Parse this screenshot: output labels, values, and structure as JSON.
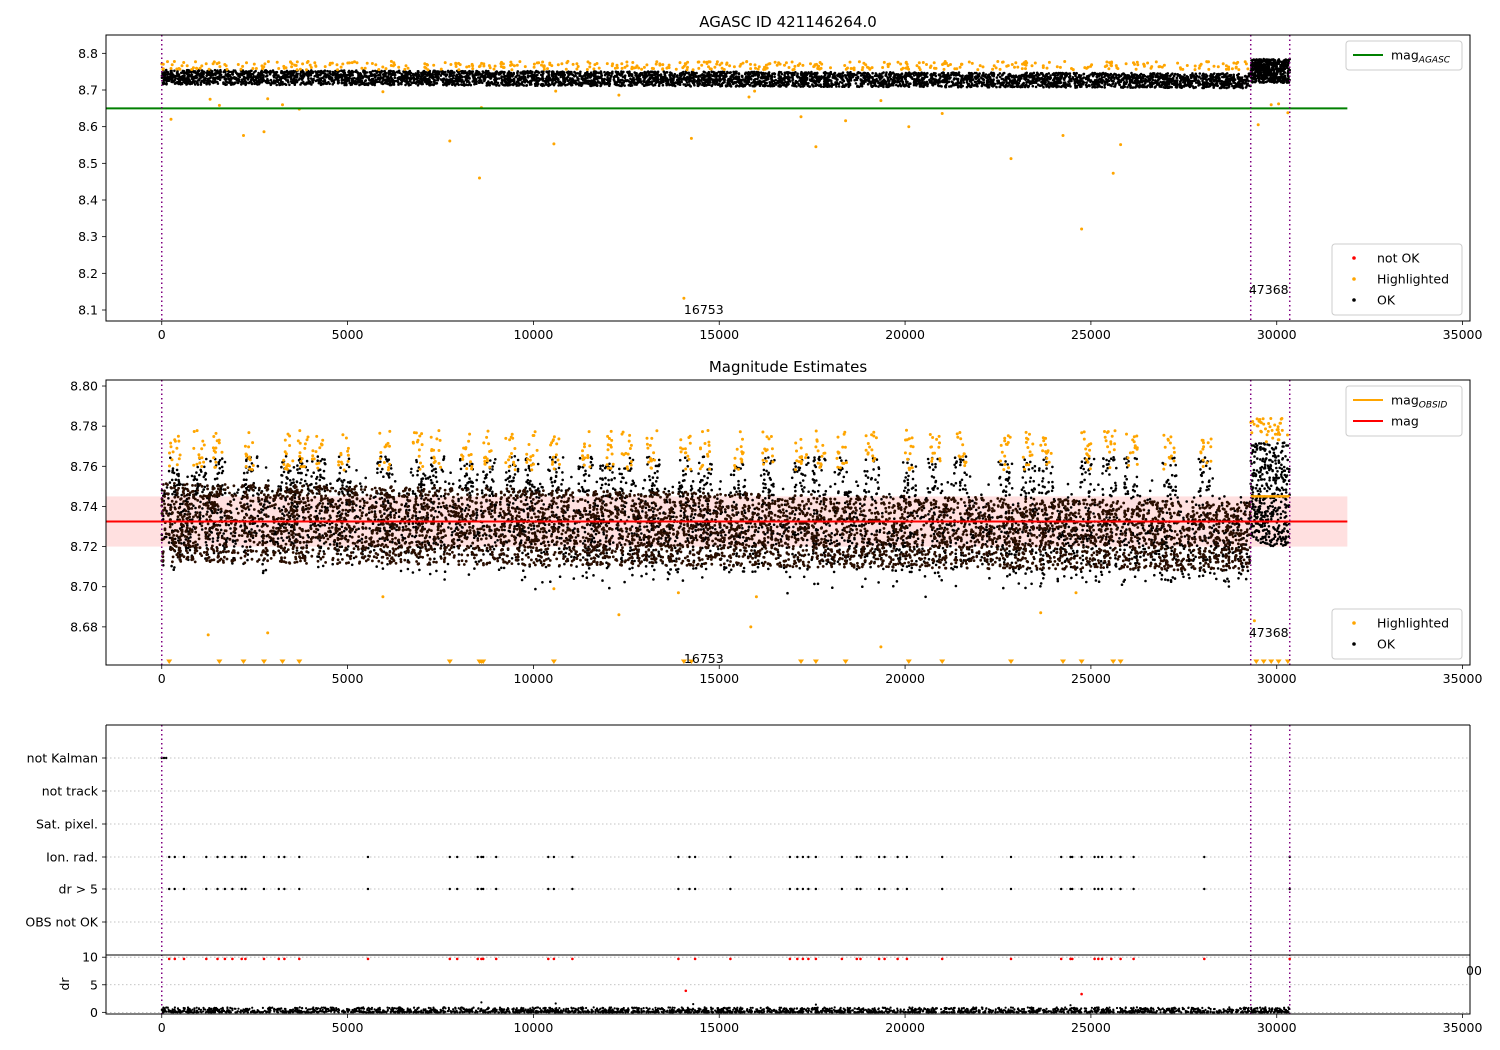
{
  "chart_data": [
    {
      "panel": "top",
      "type": "scatter",
      "title": "AGASC ID 421146264.0",
      "xlim": [
        -1500,
        35200
      ],
      "ylim": [
        8.07,
        8.85
      ],
      "xticks": [
        0,
        5000,
        10000,
        15000,
        20000,
        25000,
        30000,
        35000
      ],
      "xtick_labels": [
        "0",
        "5000",
        "10000",
        "15000",
        "20000",
        "25000",
        "30000",
        "35000"
      ],
      "yticks": [
        8.1,
        8.2,
        8.3,
        8.4,
        8.5,
        8.6,
        8.7,
        8.8
      ],
      "ytick_labels": [
        "8.1",
        "8.2",
        "8.3",
        "8.4",
        "8.5",
        "8.6",
        "8.7",
        "8.8"
      ],
      "obsid_boundaries": [
        0,
        29300,
        30350
      ],
      "obsid_labels": [
        {
          "text": "16753",
          "x": 14050,
          "y": 8.1
        },
        {
          "text": "47368",
          "x": 29250,
          "y": 8.155
        }
      ],
      "lines": [
        {
          "name": "mag_AGASC",
          "color": "#008000",
          "y": 8.65,
          "x0": -1500,
          "x1": 31900
        }
      ],
      "band": {
        "color": "#000000",
        "x": [
          0,
          29300
        ],
        "y": [
          8.715,
          8.755
        ],
        "y_end": [
          8.705,
          8.745
        ]
      },
      "band_late": {
        "color": "#000000",
        "x": [
          29300,
          30350
        ],
        "y": [
          8.72,
          8.785
        ]
      },
      "highlighted_cluster_y": [
        8.755,
        8.778
      ],
      "highlighted_outliers": [
        {
          "x": 250,
          "y": 8.62
        },
        {
          "x": 1300,
          "y": 8.675
        },
        {
          "x": 1550,
          "y": 8.658
        },
        {
          "x": 2200,
          "y": 8.576
        },
        {
          "x": 2750,
          "y": 8.586
        },
        {
          "x": 2850,
          "y": 8.676
        },
        {
          "x": 3250,
          "y": 8.66
        },
        {
          "x": 3700,
          "y": 8.648
        },
        {
          "x": 5950,
          "y": 8.695
        },
        {
          "x": 7750,
          "y": 8.561
        },
        {
          "x": 8550,
          "y": 8.46
        },
        {
          "x": 8600,
          "y": 8.652
        },
        {
          "x": 10550,
          "y": 8.553
        },
        {
          "x": 10600,
          "y": 8.697
        },
        {
          "x": 12300,
          "y": 8.686
        },
        {
          "x": 14050,
          "y": 8.132
        },
        {
          "x": 14250,
          "y": 8.568
        },
        {
          "x": 15800,
          "y": 8.681
        },
        {
          "x": 15950,
          "y": 8.697
        },
        {
          "x": 17200,
          "y": 8.627
        },
        {
          "x": 17600,
          "y": 8.545
        },
        {
          "x": 18400,
          "y": 8.616
        },
        {
          "x": 19350,
          "y": 8.671
        },
        {
          "x": 20100,
          "y": 8.6
        },
        {
          "x": 21000,
          "y": 8.636
        },
        {
          "x": 22850,
          "y": 8.513
        },
        {
          "x": 24250,
          "y": 8.576
        },
        {
          "x": 24750,
          "y": 8.321
        },
        {
          "x": 25600,
          "y": 8.473
        },
        {
          "x": 25800,
          "y": 8.551
        },
        {
          "x": 29500,
          "y": 8.605
        },
        {
          "x": 29850,
          "y": 8.66
        },
        {
          "x": 30050,
          "y": 8.662
        },
        {
          "x": 30300,
          "y": 8.638
        }
      ],
      "legends": [
        {
          "position": "upper right",
          "entries": [
            {
              "label": "mag",
              "sub": "AGASC",
              "kind": "line",
              "color": "#008000"
            }
          ]
        },
        {
          "position": "lower right",
          "entries": [
            {
              "label": "not OK",
              "kind": "dot",
              "color": "#ff0000"
            },
            {
              "label": "Highlighted",
              "kind": "dot",
              "color": "#ffa500"
            },
            {
              "label": "OK",
              "kind": "dot",
              "color": "#000000"
            }
          ]
        }
      ]
    },
    {
      "panel": "middle",
      "type": "scatter",
      "title": "Magnitude Estimates",
      "xlim": [
        -1500,
        35200
      ],
      "ylim": [
        8.661,
        8.803
      ],
      "xticks": [
        0,
        5000,
        10000,
        15000,
        20000,
        25000,
        30000,
        35000
      ],
      "xtick_labels": [
        "0",
        "5000",
        "10000",
        "15000",
        "20000",
        "25000",
        "30000",
        "35000"
      ],
      "yticks": [
        8.68,
        8.7,
        8.72,
        8.74,
        8.76,
        8.78,
        8.8
      ],
      "ytick_labels": [
        "8.68",
        "8.70",
        "8.72",
        "8.74",
        "8.76",
        "8.78",
        "8.80"
      ],
      "obsid_boundaries": [
        0,
        29300,
        30350
      ],
      "obsid_labels": [
        {
          "text": "16753",
          "x": 14050,
          "y": 8.664
        },
        {
          "text": "47368",
          "x": 29250,
          "y": 8.677
        }
      ],
      "mag": {
        "name": "mag",
        "color": "#ff0000",
        "y": 8.7325,
        "x0": -1500,
        "x1": 31900,
        "band": [
          8.72,
          8.745
        ]
      },
      "mag_obsid": {
        "name": "mag_OBSID",
        "color": "#ffa500",
        "y": 8.745,
        "x0": 29300,
        "x1": 30350
      },
      "band": {
        "color": "#2a0e00",
        "x": [
          0,
          29300
        ],
        "y": [
          8.712,
          8.752
        ],
        "y_end": [
          8.708,
          8.742
        ]
      },
      "band_late": {
        "color": "#000000",
        "x": [
          29300,
          30350
        ],
        "y": [
          8.72,
          8.772
        ]
      },
      "highlighted_spikes_x": [
        350,
        1000,
        1500,
        2400,
        3400,
        3800,
        4200,
        4900,
        6000,
        6900,
        7400,
        8200,
        8800,
        9400,
        9950,
        10600,
        11400,
        12000,
        12500,
        13200,
        14100,
        14600,
        15500,
        16300,
        17200,
        17700,
        18300,
        19100,
        20100,
        20800,
        21500,
        22700,
        23300,
        23800,
        24900,
        25500,
        26100,
        27100,
        28100
      ],
      "highlighted_outliers": [
        {
          "x": 1250,
          "y": 8.676
        },
        {
          "x": 2850,
          "y": 8.677
        },
        {
          "x": 5950,
          "y": 8.695
        },
        {
          "x": 10550,
          "y": 8.699
        },
        {
          "x": 12300,
          "y": 8.686
        },
        {
          "x": 13900,
          "y": 8.697
        },
        {
          "x": 15850,
          "y": 8.68
        },
        {
          "x": 16000,
          "y": 8.695
        },
        {
          "x": 19350,
          "y": 8.67
        },
        {
          "x": 23650,
          "y": 8.687
        },
        {
          "x": 24600,
          "y": 8.697
        },
        {
          "x": 29400,
          "y": 8.683
        }
      ],
      "below_axis_markers_x": [
        200,
        1550,
        2200,
        2750,
        3250,
        3700,
        7750,
        8550,
        8600,
        8650,
        10550,
        14050,
        14250,
        17200,
        17600,
        18400,
        20100,
        21000,
        22850,
        24250,
        24750,
        25600,
        25800,
        29450,
        29650,
        29850,
        30050,
        30300
      ],
      "legends": [
        {
          "position": "upper right",
          "entries": [
            {
              "label": "mag",
              "sub": "OBSID",
              "kind": "line",
              "color": "#ffa500"
            },
            {
              "label": "mag",
              "kind": "line",
              "color": "#ff0000"
            }
          ]
        },
        {
          "position": "lower right",
          "entries": [
            {
              "label": "Highlighted",
              "kind": "dot",
              "color": "#ffa500"
            },
            {
              "label": "OK",
              "kind": "dot",
              "color": "#000000"
            }
          ]
        }
      ]
    },
    {
      "panel": "flags",
      "type": "scatter",
      "xlim": [
        -1500,
        35200
      ],
      "categories": [
        "not Kalman",
        "not track",
        "Sat. pixel.",
        "Ion. rad.",
        "dr > 5",
        "OBS not OK"
      ],
      "obsid_boundaries": [
        0,
        29300,
        30350
      ],
      "flag_points": [
        {
          "category": "not Kalman",
          "x": [
            0,
            60,
            120
          ]
        },
        {
          "category": "not track",
          "x": []
        },
        {
          "category": "Sat. pixel.",
          "x": []
        },
        {
          "category": "Ion. rad.",
          "x": [
            200,
            350,
            600,
            1200,
            1500,
            1700,
            1900,
            2150,
            2250,
            2750,
            3150,
            3300,
            3700,
            5550,
            7750,
            7950,
            8500,
            8600,
            8650,
            9000,
            10400,
            10550,
            11050,
            13900,
            14200,
            14350,
            15300,
            16900,
            17100,
            17250,
            17400,
            17600,
            18300,
            18700,
            18800,
            19300,
            19450,
            19800,
            20050,
            21000,
            22850,
            24200,
            24450,
            24500,
            24750,
            25100,
            25200,
            25300,
            25550,
            25800,
            26150,
            28050,
            30350
          ]
        },
        {
          "category": "dr > 5",
          "x": [
            200,
            350,
            600,
            1200,
            1500,
            1700,
            1900,
            2150,
            2250,
            2750,
            3150,
            3300,
            3700,
            5550,
            7750,
            7950,
            8500,
            8600,
            8650,
            9000,
            10400,
            10550,
            11050,
            13900,
            14200,
            14350,
            15300,
            16900,
            17100,
            17250,
            17400,
            17600,
            18300,
            18700,
            18800,
            19300,
            19450,
            19800,
            20050,
            21000,
            22850,
            24200,
            24450,
            24500,
            24750,
            25100,
            25200,
            25300,
            25550,
            25800,
            26150,
            28050,
            30350
          ]
        },
        {
          "category": "OBS not OK",
          "x": []
        }
      ],
      "xticks": [
        0,
        5000,
        10000,
        15000,
        20000,
        25000,
        30000,
        35000
      ],
      "xtick_labels": [
        "0",
        "5000",
        "10000",
        "15000",
        "20000",
        "25000",
        "30000",
        "35000"
      ],
      "edge_text": "00"
    },
    {
      "panel": "dr",
      "type": "scatter",
      "ylabel": "dr",
      "xlim": [
        -1500,
        35200
      ],
      "ylim": [
        -0.3,
        10.4
      ],
      "yticks": [
        0,
        5,
        10
      ],
      "ytick_labels": [
        "0",
        "5",
        "10"
      ],
      "obsid_boundaries": [
        0,
        29300,
        30350
      ],
      "xticks": [
        0,
        5000,
        10000,
        15000,
        20000,
        25000,
        30000,
        35000
      ],
      "xtick_labels": [
        "0",
        "5000",
        "10000",
        "15000",
        "20000",
        "25000",
        "30000",
        "35000"
      ],
      "not_ok_capped_x": [
        200,
        350,
        600,
        1200,
        1500,
        1700,
        1900,
        2150,
        2250,
        2750,
        3150,
        3300,
        3700,
        5550,
        7750,
        7950,
        8500,
        8600,
        8650,
        9000,
        10400,
        10550,
        11050,
        13900,
        14350,
        15300,
        16900,
        17100,
        17250,
        17400,
        17600,
        18300,
        18700,
        18800,
        19300,
        19450,
        19800,
        20050,
        21000,
        22850,
        24200,
        24450,
        24500,
        25100,
        25200,
        25300,
        25550,
        25800,
        26150,
        28050,
        30350
      ],
      "not_ok_points": [
        {
          "x": 14100,
          "y": 3.9
        },
        {
          "x": 24750,
          "y": 3.3
        }
      ],
      "ok_outliers": [
        {
          "x": 8600,
          "y": 1.8
        },
        {
          "x": 10600,
          "y": 1.6
        },
        {
          "x": 14300,
          "y": 1.5
        },
        {
          "x": 17600,
          "y": 1.4
        },
        {
          "x": 24450,
          "y": 1.3
        }
      ],
      "band": {
        "color": "#000000",
        "y": [
          0,
          0.9
        ]
      }
    }
  ]
}
